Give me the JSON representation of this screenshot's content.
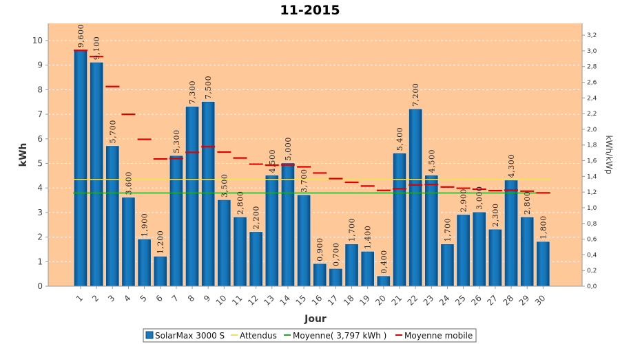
{
  "chart_data": {
    "type": "bar",
    "title": "11-2015",
    "xlabel": "Jour",
    "ylabel": "kWh",
    "y2label": "kWh/kWp",
    "ylim": [
      0,
      10.7
    ],
    "y2lim": [
      0,
      3.35
    ],
    "yticks": [
      "0",
      "1",
      "2",
      "3",
      "4",
      "5",
      "6",
      "7",
      "8",
      "9",
      "10"
    ],
    "y2ticks": [
      "0,0",
      "0,2",
      "0,4",
      "0,6",
      "0,8",
      "1,0",
      "1,2",
      "1,4",
      "1,6",
      "1,8",
      "2,0",
      "2,2",
      "2,4",
      "2,6",
      "2,8",
      "3,0",
      "3,2"
    ],
    "categories": [
      "1",
      "2",
      "3",
      "4",
      "5",
      "6",
      "7",
      "8",
      "9",
      "10",
      "11",
      "12",
      "13",
      "14",
      "15",
      "16",
      "17",
      "18",
      "19",
      "20",
      "21",
      "22",
      "23",
      "24",
      "25",
      "26",
      "27",
      "28",
      "29",
      "30"
    ],
    "series": [
      {
        "name": "SolarMax 3000 S",
        "kind": "bar",
        "color": "#1f77b4",
        "values": [
          9.6,
          9.1,
          5.7,
          3.6,
          1.9,
          1.2,
          5.3,
          7.3,
          7.5,
          3.5,
          2.8,
          2.2,
          4.5,
          5.0,
          3.7,
          0.9,
          0.7,
          1.7,
          1.4,
          0.4,
          5.4,
          7.2,
          4.5,
          1.7,
          2.9,
          3.0,
          2.3,
          4.3,
          2.8,
          1.8
        ],
        "labels": [
          "9,600",
          "9,100",
          "5,700",
          "3,600",
          "1,900",
          "1,200",
          "5,300",
          "7,300",
          "7,500",
          "3,500",
          "2,800",
          "2,200",
          "4,500",
          "5,000",
          "3,700",
          "0,900",
          "0,700",
          "1,700",
          "1,400",
          "0,400",
          "5,400",
          "7,200",
          "4,500",
          "1,700",
          "2,900",
          "3,000",
          "2,300",
          "4,300",
          "2,800",
          "1,800"
        ]
      },
      {
        "name": "Attendus",
        "kind": "hline",
        "color": "#f0e060",
        "value": 4.35
      },
      {
        "name": "Moyenne( 3,797 kWh )",
        "kind": "hline",
        "color": "#22aa22",
        "value": 3.797
      },
      {
        "name": "Moyenne mobile",
        "kind": "step",
        "color": "#e00000",
        "values": [
          9.6,
          9.35,
          8.13,
          7.0,
          5.98,
          5.18,
          5.2,
          5.45,
          5.68,
          5.46,
          5.22,
          4.97,
          4.93,
          4.94,
          4.86,
          4.61,
          4.38,
          4.23,
          4.08,
          3.9,
          3.97,
          4.12,
          4.14,
          4.04,
          3.99,
          3.95,
          3.89,
          3.91,
          3.87,
          3.8
        ]
      }
    ],
    "grid": true,
    "legend_position": "bottom"
  },
  "colors": {
    "plot_background": "#ffc898",
    "bar_fill": "#1f77b4",
    "bar_edge": "#0d4f80",
    "bar_outline": "#d8d8d8",
    "moving_avg": "#e00000",
    "average": "#22aa22",
    "expected": "#f0e060"
  }
}
